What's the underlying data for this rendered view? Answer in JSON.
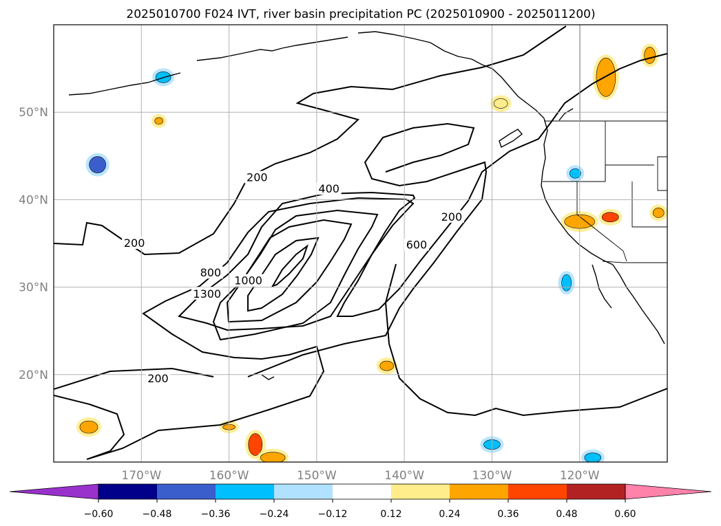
{
  "title": "2025010700 F024 IVT, river basin precipitation PC (2025010900 - 2025011200)",
  "map": {
    "lon_range": [
      -180,
      -110
    ],
    "lat_range": [
      10,
      60
    ],
    "lat_ticks": [
      {
        "lat": 50,
        "label": "50°N"
      },
      {
        "lat": 40,
        "label": "40°N"
      },
      {
        "lat": 30,
        "label": "30°N"
      },
      {
        "lat": 20,
        "label": "20°N"
      }
    ],
    "lon_ticks": [
      {
        "lon": -170,
        "label": "170°W"
      },
      {
        "lon": -160,
        "label": "160°W"
      },
      {
        "lon": -150,
        "label": "150°W"
      },
      {
        "lon": -140,
        "label": "140°W"
      },
      {
        "lon": -130,
        "label": "130°W"
      },
      {
        "lon": -120,
        "label": "120°W"
      }
    ],
    "grid": true,
    "contour_labels": [
      {
        "text": "200",
        "lon": -170.8,
        "lat": 35.0
      },
      {
        "text": "200",
        "lon": -156.8,
        "lat": 42.5
      },
      {
        "text": "200",
        "lon": -134.6,
        "lat": 38.0
      },
      {
        "text": "200",
        "lon": -168.1,
        "lat": 19.5
      },
      {
        "text": "400",
        "lon": -148.6,
        "lat": 41.2
      },
      {
        "text": "600",
        "lon": -138.6,
        "lat": 34.8
      },
      {
        "text": "800",
        "lon": -162.1,
        "lat": 31.6
      },
      {
        "text": "1000",
        "lon": -157.8,
        "lat": 30.7
      },
      {
        "text": "1300",
        "lon": -162.5,
        "lat": 29.2
      }
    ]
  },
  "colorbar": {
    "colors": [
      "#9932cc",
      "#00008b",
      "#3a5fcd",
      "#00bfff",
      "#b0e2ff",
      "#ffffff",
      "#ffec8b",
      "#ffa500",
      "#ff4500",
      "#b22222",
      "#ff82ab"
    ],
    "tick_labels": [
      "−0.60",
      "−0.48",
      "−0.36",
      "−0.24",
      "−0.12",
      "0.12",
      "0.24",
      "0.36",
      "0.48",
      "0.60"
    ]
  },
  "precip_blobs": [
    {
      "lon": -117,
      "lat": 54,
      "rx": 14,
      "ry": 28,
      "color": "#ffa500"
    },
    {
      "lon": -112,
      "lat": 56.5,
      "rx": 8,
      "ry": 12,
      "color": "#ffa500"
    },
    {
      "lon": -120,
      "lat": 37.5,
      "rx": 22,
      "ry": 10,
      "color": "#ffa500"
    },
    {
      "lon": -116.5,
      "lat": 38,
      "rx": 12,
      "ry": 7,
      "color": "#ff4500"
    },
    {
      "lon": -111,
      "lat": 38.5,
      "rx": 8,
      "ry": 7,
      "color": "#ffa500"
    },
    {
      "lon": -157,
      "lat": 12,
      "rx": 10,
      "ry": 16,
      "color": "#ff4500"
    },
    {
      "lon": -155,
      "lat": 10.5,
      "rx": 18,
      "ry": 8,
      "color": "#ffa500"
    },
    {
      "lon": -176,
      "lat": 14,
      "rx": 13,
      "ry": 9,
      "color": "#ffa500"
    },
    {
      "lon": -142,
      "lat": 21,
      "rx": 10,
      "ry": 7,
      "color": "#ffa500"
    },
    {
      "lon": -160,
      "lat": 14,
      "rx": 9,
      "ry": 4,
      "color": "#ffa500"
    },
    {
      "lon": -129,
      "lat": 51,
      "rx": 10,
      "ry": 7,
      "color": "#ffec8b"
    },
    {
      "lon": -168,
      "lat": 49,
      "rx": 6,
      "ry": 5,
      "color": "#ffa500"
    },
    {
      "lon": -175,
      "lat": 44,
      "rx": 12,
      "ry": 12,
      "color": "#3a5fcd"
    },
    {
      "lon": -167.5,
      "lat": 54,
      "rx": 11,
      "ry": 8,
      "color": "#00bfff"
    },
    {
      "lon": -120.5,
      "lat": 43,
      "rx": 8,
      "ry": 7,
      "color": "#00bfff"
    },
    {
      "lon": -121.5,
      "lat": 30.5,
      "rx": 7,
      "ry": 12,
      "color": "#00bfff"
    },
    {
      "lon": -130,
      "lat": 12,
      "rx": 12,
      "ry": 7,
      "color": "#00bfff"
    },
    {
      "lon": -118.5,
      "lat": 10.5,
      "rx": 12,
      "ry": 7,
      "color": "#00bfff"
    }
  ]
}
